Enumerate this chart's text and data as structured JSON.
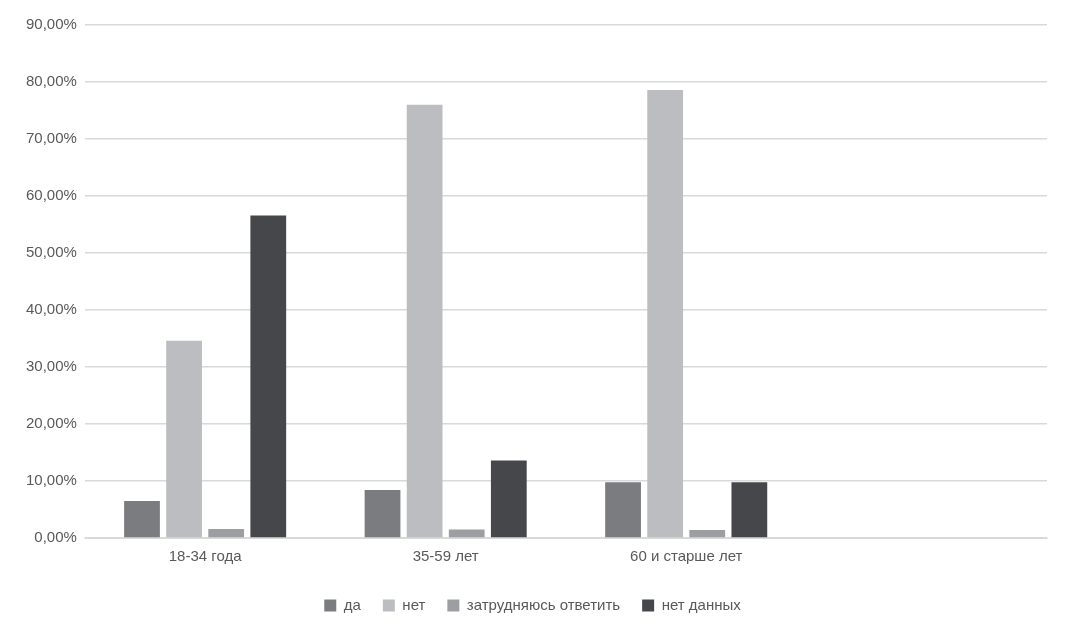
{
  "chart_data": {
    "type": "bar",
    "categories": [
      "18-34 года",
      "35-59 лет",
      "60 и старше лет",
      null
    ],
    "series": [
      {
        "name": "да",
        "color": "#7b7c80",
        "values": [
          6.5,
          8.4,
          9.8,
          null
        ]
      },
      {
        "name": "нет",
        "color": "#bcbdc0",
        "values": [
          34.6,
          76.0,
          78.6,
          null
        ]
      },
      {
        "name": "затрудняюсь ответить",
        "color": "#9d9ea2",
        "values": [
          1.6,
          1.5,
          1.4,
          null
        ]
      },
      {
        "name": "нет данных",
        "color": "#46474a",
        "values": [
          56.6,
          13.6,
          9.8,
          null
        ]
      }
    ],
    "ylim": [
      0,
      90
    ],
    "yticks": [
      {
        "value": 0,
        "label": "0,00%"
      },
      {
        "value": 10,
        "label": "10,00%"
      },
      {
        "value": 20,
        "label": "20,00%"
      },
      {
        "value": 30,
        "label": "30,00%"
      },
      {
        "value": 40,
        "label": "40,00%"
      },
      {
        "value": 50,
        "label": "50,00%"
      },
      {
        "value": 60,
        "label": "60,00%"
      },
      {
        "value": 70,
        "label": "70,00%"
      },
      {
        "value": 80,
        "label": "80,00%"
      },
      {
        "value": 90,
        "label": "90,00%"
      }
    ],
    "grid": "y",
    "legend": "bottom"
  }
}
